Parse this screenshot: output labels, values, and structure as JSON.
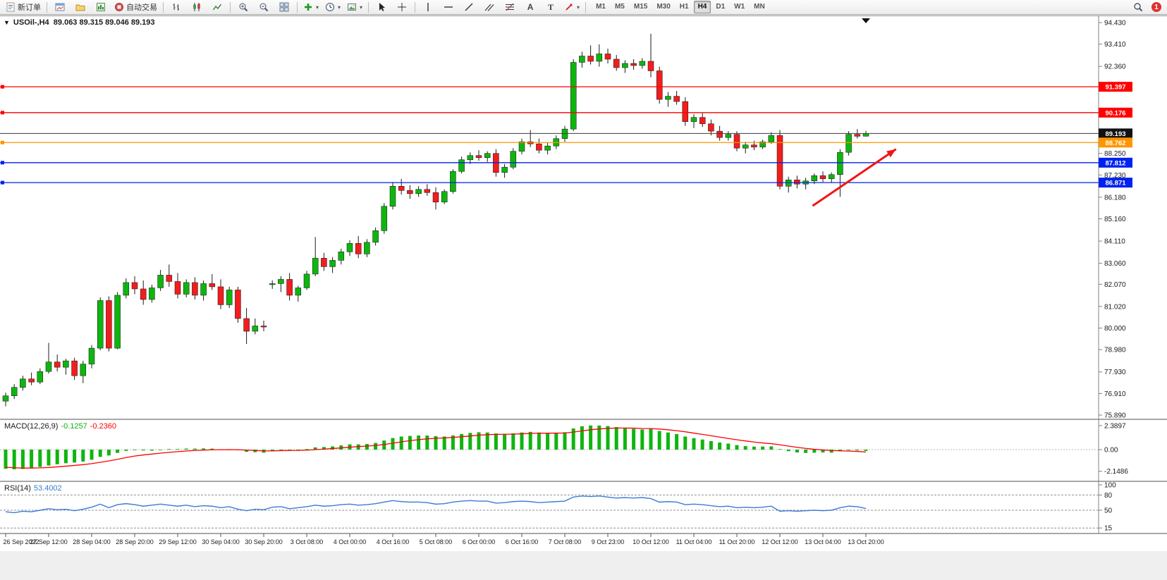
{
  "toolbar": {
    "new_order": "新订单",
    "auto_trading": "自动交易",
    "text_tool": "A",
    "label_tool": "T",
    "timeframes": [
      "M1",
      "M5",
      "M15",
      "M30",
      "H1",
      "H4",
      "D1",
      "W1",
      "MN"
    ],
    "active_timeframe": "H4",
    "notification_badge": "1"
  },
  "chart_header": {
    "symbol_title": "USOil-,H4",
    "ohlc": "89.063 89.315 89.046 89.193",
    "collapse_arrow": "▼"
  },
  "indicator_labels": {
    "macd": "MACD(12,26,9)",
    "macd_main": "-0.1257",
    "macd_signal": "-0.2360",
    "rsi": "RSI(14)",
    "rsi_value": "53.4002"
  },
  "colors": {
    "up": "#0fb50f",
    "down": "#f21d1d",
    "wick": "#1c1c1c",
    "macd_histogram": "#0fb50f",
    "macd_signal": "#ff0000",
    "rsi_line": "#3c7bd4",
    "line_red": "#ff0000",
    "line_orange": "#ff9500",
    "line_blue": "#0022ee",
    "bid_line": "#3c3c3c",
    "arrow": "#f01616"
  },
  "chart_data": {
    "type": "candlestick",
    "symbol": "USOil-",
    "timeframe": "H4",
    "current_bar": {
      "open": 89.063,
      "high": 89.315,
      "low": 89.046,
      "close": 89.193
    },
    "y_axis": {
      "min": 75.89,
      "max": 94.43,
      "tick_labels": [
        "94.430",
        "93.410",
        "92.360",
        "88.250",
        "87.230",
        "86.180",
        "85.160",
        "84.110",
        "83.060",
        "82.070",
        "81.020",
        "80.000",
        "78.980",
        "77.930",
        "76.910",
        "75.890"
      ]
    },
    "x_labels": [
      "26 Sep 2022",
      "27 Sep 12:00",
      "28 Sep 04:00",
      "28 Sep 20:00",
      "29 Sep 12:00",
      "30 Sep 04:00",
      "30 Sep 20:00",
      "3 Oct 08:00",
      "4 Oct 00:00",
      "4 Oct 16:00",
      "5 Oct 08:00",
      "6 Oct 00:00",
      "6 Oct 16:00",
      "7 Oct 08:00",
      "9 Oct 23:00",
      "10 Oct 12:00",
      "11 Oct 04:00",
      "11 Oct 20:00",
      "12 Oct 12:00",
      "13 Oct 04:00",
      "13 Oct 20:00"
    ],
    "label_every_n_candles": 5,
    "candles_ohlc": [
      [
        76.55,
        76.95,
        76.3,
        76.8
      ],
      [
        76.8,
        77.35,
        76.65,
        77.2
      ],
      [
        77.2,
        77.75,
        77.05,
        77.6
      ],
      [
        77.6,
        77.9,
        77.3,
        77.45
      ],
      [
        77.45,
        78.1,
        77.35,
        77.95
      ],
      [
        77.95,
        79.3,
        77.85,
        78.4
      ],
      [
        78.4,
        78.75,
        77.95,
        78.15
      ],
      [
        78.15,
        78.55,
        77.8,
        78.45
      ],
      [
        78.45,
        78.6,
        77.55,
        77.75
      ],
      [
        77.75,
        78.45,
        77.4,
        78.3
      ],
      [
        78.3,
        79.2,
        78.1,
        79.05
      ],
      [
        79.05,
        81.45,
        78.95,
        81.3
      ],
      [
        81.3,
        81.5,
        78.9,
        79.05
      ],
      [
        79.05,
        81.7,
        79.0,
        81.55
      ],
      [
        81.55,
        82.35,
        81.4,
        82.15
      ],
      [
        82.15,
        82.45,
        81.6,
        81.85
      ],
      [
        81.85,
        82.25,
        81.1,
        81.35
      ],
      [
        81.35,
        82.05,
        81.2,
        81.9
      ],
      [
        81.9,
        82.75,
        81.75,
        82.5
      ],
      [
        82.5,
        83.0,
        81.95,
        82.2
      ],
      [
        82.2,
        82.6,
        81.4,
        81.6
      ],
      [
        81.6,
        82.3,
        81.45,
        82.15
      ],
      [
        82.15,
        82.4,
        81.35,
        81.55
      ],
      [
        81.55,
        82.25,
        81.3,
        82.1
      ],
      [
        82.1,
        82.55,
        81.8,
        81.95
      ],
      [
        81.95,
        82.3,
        80.9,
        81.1
      ],
      [
        81.1,
        81.95,
        80.95,
        81.8
      ],
      [
        81.8,
        81.95,
        80.25,
        80.45
      ],
      [
        80.45,
        80.95,
        79.25,
        79.85
      ],
      [
        79.85,
        80.45,
        79.7,
        80.1
      ],
      [
        80.1,
        80.35,
        79.85,
        80.05
      ],
      [
        82.05,
        82.25,
        81.85,
        82.1
      ],
      [
        82.1,
        82.45,
        81.7,
        82.3
      ],
      [
        82.3,
        82.6,
        81.3,
        81.55
      ],
      [
        81.55,
        82.0,
        81.25,
        81.9
      ],
      [
        81.9,
        82.7,
        81.8,
        82.55
      ],
      [
        82.55,
        84.3,
        82.45,
        83.3
      ],
      [
        83.3,
        83.55,
        82.7,
        82.9
      ],
      [
        82.9,
        83.35,
        82.6,
        83.2
      ],
      [
        83.2,
        83.75,
        83.0,
        83.6
      ],
      [
        83.6,
        84.15,
        83.4,
        84.0
      ],
      [
        84.0,
        84.35,
        83.3,
        83.5
      ],
      [
        83.5,
        84.2,
        83.35,
        84.05
      ],
      [
        84.05,
        84.75,
        83.9,
        84.6
      ],
      [
        84.6,
        85.9,
        84.45,
        85.75
      ],
      [
        85.75,
        86.9,
        85.6,
        86.7
      ],
      [
        86.7,
        87.05,
        86.3,
        86.5
      ],
      [
        86.5,
        86.75,
        86.1,
        86.35
      ],
      [
        86.35,
        86.7,
        86.2,
        86.55
      ],
      [
        86.55,
        86.8,
        86.25,
        86.4
      ],
      [
        86.4,
        86.65,
        85.6,
        85.95
      ],
      [
        85.95,
        86.55,
        85.85,
        86.45
      ],
      [
        86.45,
        87.5,
        86.35,
        87.4
      ],
      [
        87.4,
        88.1,
        87.3,
        87.95
      ],
      [
        87.95,
        88.3,
        87.75,
        88.15
      ],
      [
        88.15,
        88.4,
        87.9,
        88.05
      ],
      [
        88.05,
        88.35,
        87.85,
        88.25
      ],
      [
        88.25,
        88.45,
        87.15,
        87.35
      ],
      [
        87.35,
        87.75,
        87.1,
        87.6
      ],
      [
        87.6,
        88.5,
        87.5,
        88.35
      ],
      [
        88.35,
        88.95,
        88.2,
        88.8
      ],
      [
        88.8,
        89.35,
        88.55,
        88.7
      ],
      [
        88.7,
        88.95,
        88.25,
        88.4
      ],
      [
        88.4,
        88.75,
        88.2,
        88.6
      ],
      [
        88.6,
        89.1,
        88.45,
        88.95
      ],
      [
        88.95,
        89.55,
        88.8,
        89.4
      ],
      [
        89.4,
        92.7,
        89.3,
        92.55
      ],
      [
        92.55,
        93.05,
        92.3,
        92.85
      ],
      [
        92.85,
        93.35,
        92.45,
        92.6
      ],
      [
        92.6,
        93.4,
        92.35,
        92.95
      ],
      [
        92.95,
        93.2,
        92.5,
        92.7
      ],
      [
        92.7,
        92.9,
        92.15,
        92.3
      ],
      [
        92.3,
        92.65,
        92.05,
        92.5
      ],
      [
        92.5,
        92.7,
        92.2,
        92.4
      ],
      [
        92.4,
        92.75,
        92.25,
        92.6
      ],
      [
        92.6,
        93.9,
        91.85,
        92.15
      ],
      [
        92.15,
        92.35,
        90.6,
        90.8
      ],
      [
        90.8,
        91.15,
        90.45,
        90.95
      ],
      [
        90.95,
        91.2,
        90.55,
        90.7
      ],
      [
        90.7,
        90.9,
        89.55,
        89.75
      ],
      [
        89.75,
        90.1,
        89.45,
        89.95
      ],
      [
        89.95,
        90.15,
        89.5,
        89.65
      ],
      [
        89.65,
        89.85,
        89.1,
        89.3
      ],
      [
        89.3,
        89.55,
        88.85,
        89.0
      ],
      [
        89.0,
        89.3,
        88.85,
        89.15
      ],
      [
        89.15,
        89.3,
        88.35,
        88.5
      ],
      [
        88.5,
        88.8,
        88.25,
        88.65
      ],
      [
        88.65,
        88.85,
        88.4,
        88.55
      ],
      [
        88.55,
        88.9,
        88.45,
        88.8
      ],
      [
        88.8,
        89.25,
        88.7,
        89.1
      ],
      [
        89.1,
        89.35,
        86.55,
        86.7
      ],
      [
        86.7,
        87.15,
        86.4,
        87.0
      ],
      [
        87.0,
        87.2,
        86.6,
        86.8
      ],
      [
        86.8,
        87.1,
        86.55,
        86.95
      ],
      [
        86.95,
        87.3,
        86.8,
        87.2
      ],
      [
        87.2,
        87.4,
        86.9,
        87.05
      ],
      [
        87.05,
        87.35,
        86.85,
        87.25
      ],
      [
        87.25,
        88.45,
        86.2,
        88.3
      ],
      [
        88.3,
        89.3,
        88.15,
        89.15
      ],
      [
        89.15,
        89.4,
        88.95,
        89.06
      ],
      [
        89.063,
        89.315,
        89.046,
        89.193
      ]
    ],
    "horizontal_lines": [
      {
        "price": 91.397,
        "label": "91.397",
        "color_key": "line_red"
      },
      {
        "price": 90.176,
        "label": "90.176",
        "color_key": "line_red"
      },
      {
        "price": 89.193,
        "label": "89.193",
        "color_key": "bid_line",
        "badge": "black"
      },
      {
        "price": 88.762,
        "label": "88.762",
        "color_key": "line_orange"
      },
      {
        "price": 87.812,
        "label": "87.812",
        "color_key": "line_blue"
      },
      {
        "price": 86.871,
        "label": "86.871",
        "color_key": "line_blue"
      }
    ],
    "trend_arrow": {
      "from_candle": 93.8,
      "from_price": 85.77,
      "to_candle": 103.5,
      "to_price": 88.45
    },
    "macd": {
      "label": "MACD(12,26,9)",
      "main_value": -0.1257,
      "signal_value": -0.236,
      "scale": [
        "2.3897",
        "0.00",
        "-2.1486"
      ],
      "max": 2.3897,
      "min": -2.1486,
      "histogram": [
        -1.9,
        -1.95,
        -1.92,
        -1.85,
        -1.72,
        -1.58,
        -1.45,
        -1.35,
        -1.28,
        -1.18,
        -1.0,
        -0.72,
        -0.58,
        -0.32,
        -0.12,
        -0.02,
        -0.08,
        -0.1,
        0.0,
        0.06,
        0.06,
        0.1,
        0.1,
        0.12,
        0.1,
        0.04,
        0.04,
        -0.06,
        -0.22,
        -0.26,
        -0.3,
        -0.1,
        0.02,
        -0.04,
        -0.04,
        0.06,
        0.22,
        0.26,
        0.32,
        0.42,
        0.52,
        0.52,
        0.56,
        0.66,
        0.9,
        1.15,
        1.3,
        1.36,
        1.4,
        1.4,
        1.34,
        1.3,
        1.4,
        1.55,
        1.66,
        1.72,
        1.7,
        1.6,
        1.56,
        1.62,
        1.7,
        1.76,
        1.7,
        1.66,
        1.66,
        1.72,
        2.1,
        2.32,
        2.39,
        2.39,
        2.34,
        2.24,
        2.14,
        2.06,
        2.0,
        2.05,
        1.85,
        1.7,
        1.54,
        1.3,
        1.14,
        1.0,
        0.85,
        0.7,
        0.6,
        0.45,
        0.36,
        0.3,
        0.3,
        0.32,
        0.05,
        -0.15,
        -0.28,
        -0.33,
        -0.3,
        -0.28,
        -0.3,
        -0.16,
        -0.02,
        -0.08,
        -0.126
      ],
      "signal": [
        -1.75,
        -1.8,
        -1.83,
        -1.83,
        -1.81,
        -1.77,
        -1.71,
        -1.64,
        -1.57,
        -1.49,
        -1.39,
        -1.26,
        -1.12,
        -0.96,
        -0.79,
        -0.64,
        -0.53,
        -0.44,
        -0.35,
        -0.27,
        -0.2,
        -0.14,
        -0.09,
        -0.05,
        -0.02,
        -0.01,
        0.0,
        -0.01,
        -0.05,
        -0.09,
        -0.13,
        -0.13,
        -0.1,
        -0.09,
        -0.08,
        -0.05,
        0.0,
        0.05,
        0.11,
        0.17,
        0.24,
        0.3,
        0.35,
        0.41,
        0.51,
        0.64,
        0.77,
        0.89,
        0.99,
        1.07,
        1.12,
        1.16,
        1.21,
        1.28,
        1.35,
        1.43,
        1.48,
        1.51,
        1.52,
        1.54,
        1.57,
        1.61,
        1.63,
        1.63,
        1.64,
        1.65,
        1.74,
        1.86,
        1.97,
        2.05,
        2.11,
        2.14,
        2.14,
        2.13,
        2.1,
        2.09,
        2.04,
        1.97,
        1.88,
        1.77,
        1.64,
        1.51,
        1.38,
        1.24,
        1.11,
        0.98,
        0.86,
        0.75,
        0.66,
        0.59,
        0.48,
        0.35,
        0.23,
        0.12,
        0.03,
        -0.03,
        -0.09,
        -0.12,
        -0.14,
        -0.18,
        -0.236
      ]
    },
    "rsi": {
      "label": "RSI(14)",
      "value": 53.4002,
      "scale_labels": [
        "100",
        "80",
        "50",
        "15"
      ],
      "levels": [
        80,
        50,
        15
      ],
      "values": [
        47,
        45,
        48,
        47,
        50,
        53,
        51,
        52,
        49,
        52,
        56,
        62,
        55,
        61,
        63,
        61,
        58,
        60,
        62,
        60,
        58,
        60,
        57,
        59,
        58,
        55,
        57,
        52,
        49,
        52,
        51,
        56,
        57,
        53,
        55,
        57,
        60,
        58,
        59,
        61,
        62,
        60,
        61,
        63,
        66,
        69,
        67,
        66,
        66,
        65,
        62,
        63,
        66,
        68,
        69,
        68,
        68,
        64,
        65,
        67,
        68,
        67,
        65,
        66,
        67,
        68,
        76,
        78,
        77,
        78,
        76,
        74,
        75,
        74,
        75,
        73,
        66,
        67,
        66,
        61,
        62,
        61,
        59,
        57,
        58,
        55,
        56,
        55,
        56,
        58,
        48,
        49,
        48,
        49,
        50,
        49,
        50,
        55,
        58,
        57,
        53.4
      ]
    }
  }
}
